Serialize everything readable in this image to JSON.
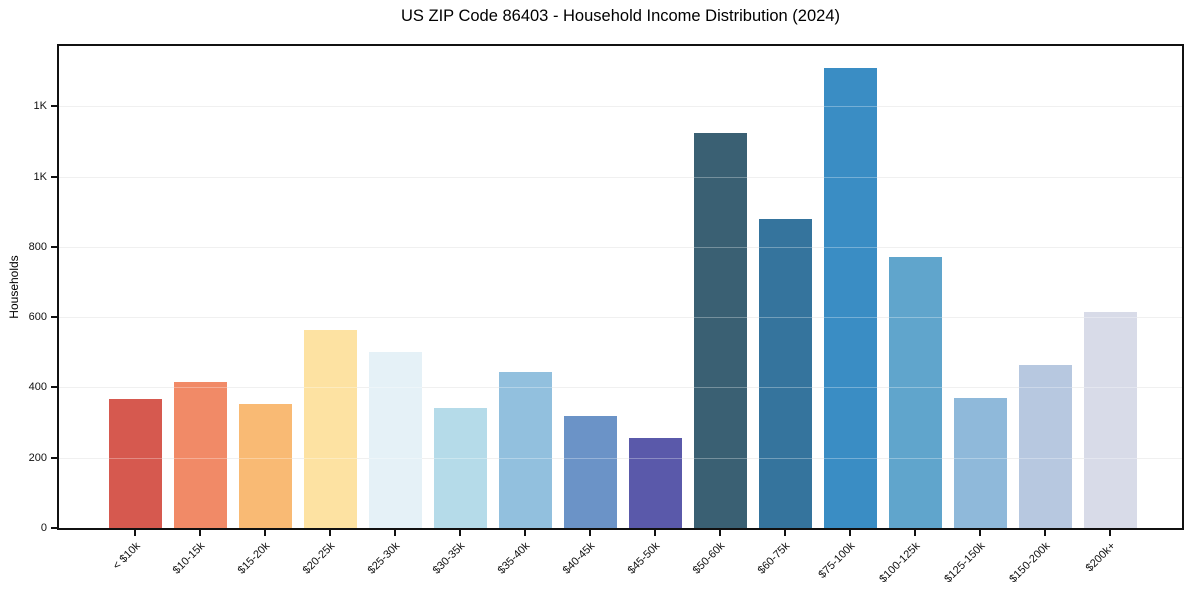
{
  "chart_data": {
    "type": "bar",
    "title": "US ZIP Code 86403 - Household Income Distribution (2024)",
    "xlabel": "",
    "ylabel": "Households",
    "categories": [
      "< $10k",
      "$10-15k",
      "$15-20k",
      "$20-25k",
      "$25-30k",
      "$30-35k",
      "$35-40k",
      "$40-45k",
      "$45-50k",
      "$50-60k",
      "$60-75k",
      "$75-100k",
      "$100-125k",
      "$125-150k",
      "$150-200k",
      "$200k+"
    ],
    "values": [
      368,
      415,
      352,
      565,
      500,
      343,
      445,
      318,
      255,
      1125,
      880,
      1310,
      772,
      370,
      465,
      615
    ],
    "bar_colors": [
      "#d6594f",
      "#f18a67",
      "#f9ba74",
      "#fde2a2",
      "#e5f1f7",
      "#b5dbe9",
      "#92c0de",
      "#6b93c7",
      "#5a59aa",
      "#3a6073",
      "#35749d",
      "#3a8dc4",
      "#60a5cc",
      "#8fb9da",
      "#b7c8e0",
      "#d8dbe8"
    ],
    "yticks": {
      "values": [
        0,
        200,
        400,
        600,
        800,
        1000,
        1200
      ],
      "labels": [
        "0",
        "200",
        "400",
        "600",
        "800",
        "1K",
        "1K"
      ]
    },
    "ylim": [
      0,
      1372
    ],
    "grid": "horizontal",
    "gridline_color": "#eaeaea",
    "axis_color": "#111111",
    "background": "#ffffff",
    "legend": "none"
  }
}
